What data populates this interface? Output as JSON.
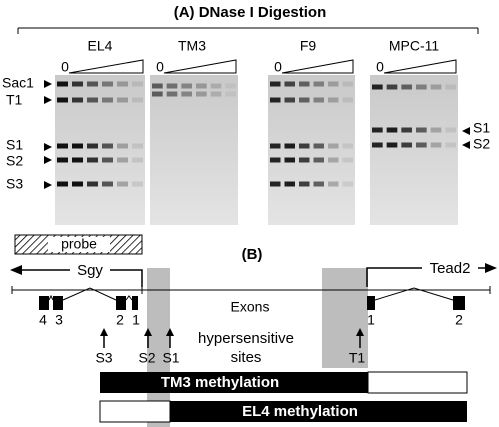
{
  "panel_a": {
    "title": "(A) DNase I Digestion",
    "lanes": [
      {
        "label": "EL4",
        "zero": "0"
      },
      {
        "label": "TM3",
        "zero": "0"
      },
      {
        "label": "F9",
        "zero": "0"
      },
      {
        "label": "MPC-11",
        "zero": "0"
      }
    ],
    "left_markers": [
      "Sac1",
      "T1",
      "S1",
      "S2",
      "S3"
    ],
    "right_markers": [
      "S1",
      "S2"
    ]
  },
  "panel_b": {
    "label": "(B)",
    "probe": "probe",
    "genes": [
      "Sgy",
      "Tead2"
    ],
    "exon_label": "Exons",
    "sgy_exons": [
      "4",
      "3",
      "2",
      "1"
    ],
    "tead2_exons": [
      "1",
      "2"
    ],
    "sites": [
      "S3",
      "S2",
      "S1",
      "T1"
    ],
    "hypersensitive": [
      "hypersensitive",
      "sites"
    ],
    "methylation": [
      "TM3 methylation",
      "EL4 methylation"
    ]
  }
}
